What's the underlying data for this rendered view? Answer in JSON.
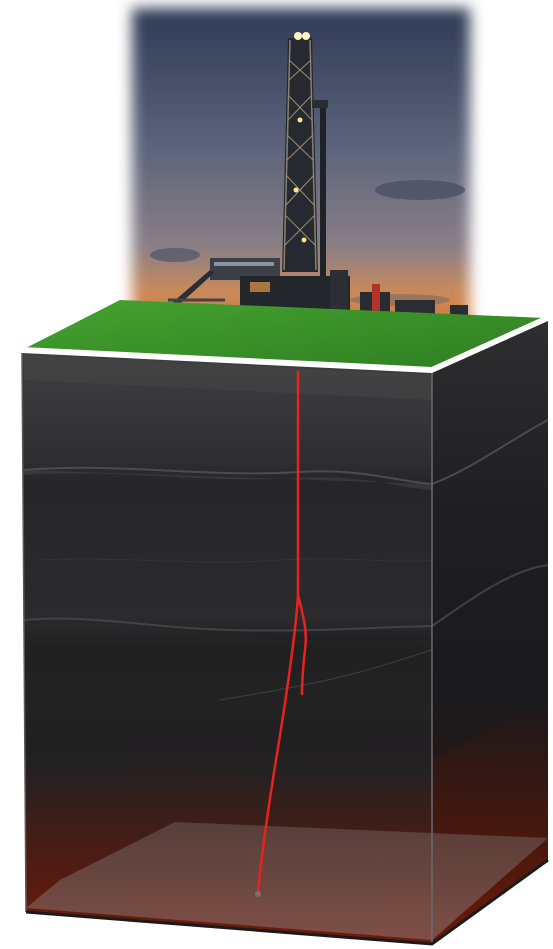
{
  "scene": {
    "subject": "drilling-rig",
    "colors": {
      "sky_top": "#3b4560",
      "sky_mid": "#6a6f82",
      "horizon_glow": "#e0894a",
      "ground_surface": "#3e9a2c",
      "ground_edge": "#ffffff",
      "rock_dark": "#1c1c1e",
      "rock_mid": "#3a3a3c",
      "rock_deep_red": "#4a1508",
      "wellbore": "#e8231f",
      "rig_lights": "#ffe9a8"
    }
  }
}
